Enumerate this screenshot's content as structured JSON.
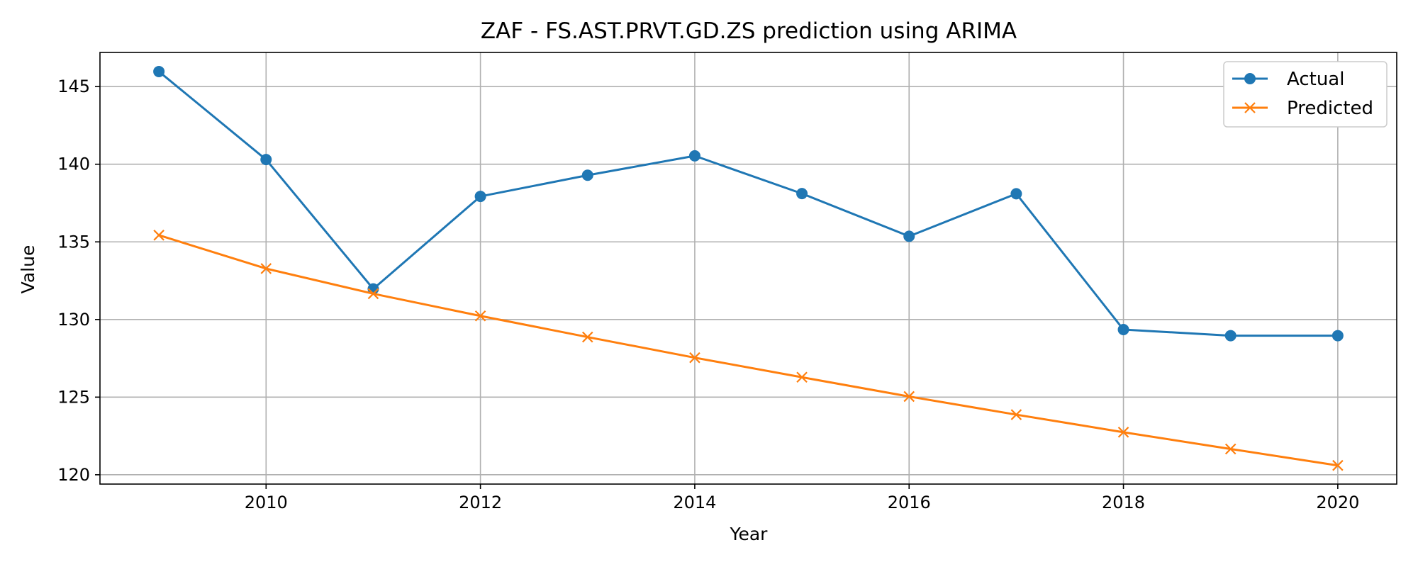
{
  "chart_data": {
    "type": "line",
    "title": "ZAF - FS.AST.PRVT.GD.ZS prediction using ARIMA",
    "xlabel": "Year",
    "ylabel": "Value",
    "x": [
      2009,
      2010,
      2011,
      2012,
      2013,
      2014,
      2015,
      2016,
      2017,
      2018,
      2019,
      2020
    ],
    "xlim": [
      2008.45,
      2020.55
    ],
    "ylim": [
      119.4,
      147.2
    ],
    "xticks": [
      2010,
      2012,
      2014,
      2016,
      2018,
      2020
    ],
    "yticks": [
      120,
      125,
      130,
      135,
      140,
      145
    ],
    "grid": true,
    "legend_position": "top-right",
    "series": [
      {
        "name": "Actual",
        "marker": "circle",
        "color": "#1f77b4",
        "values": [
          145.97,
          140.3,
          131.97,
          137.93,
          139.29,
          140.54,
          138.11,
          135.36,
          138.1,
          129.35,
          128.96,
          128.96
        ]
      },
      {
        "name": "Predicted",
        "marker": "x",
        "color": "#ff7f0e",
        "values": [
          135.43,
          133.28,
          131.66,
          130.23,
          128.87,
          127.54,
          126.28,
          125.04,
          123.87,
          122.74,
          121.66,
          120.6
        ]
      }
    ]
  }
}
